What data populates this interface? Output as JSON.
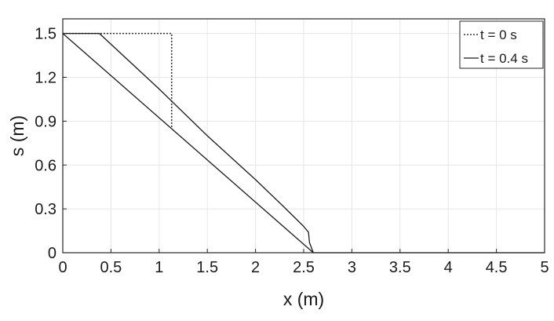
{
  "chart_data": {
    "type": "line",
    "xlabel": "x (m)",
    "ylabel": "s (m)",
    "xlim": [
      0,
      5
    ],
    "ylim": [
      0,
      1.6
    ],
    "x_ticks": [
      "0",
      "0.5",
      "1",
      "1.5",
      "2",
      "2.5",
      "3",
      "3.5",
      "4",
      "4.5",
      "5"
    ],
    "y_ticks": [
      "0",
      "0.3",
      "0.6",
      "0.9",
      "1.2",
      "1.5"
    ],
    "grid": true,
    "legend_position": "top-right",
    "series": [
      {
        "name": "t = 0 s",
        "style": "dotted",
        "color": "#333333",
        "x": [
          0,
          1.13,
          1.13
        ],
        "y": [
          1.5,
          1.5,
          0.85
        ]
      },
      {
        "name": "t = 0.4 s",
        "style": "solid",
        "color": "#1a1a1a",
        "x": [
          0,
          0.38,
          1.0,
          1.5,
          2.0,
          2.3,
          2.5,
          2.55,
          2.56,
          2.6,
          5.0
        ],
        "y": [
          1.5,
          1.5,
          1.12,
          0.8,
          0.5,
          0.31,
          0.18,
          0.14,
          0.07,
          0,
          0
        ]
      },
      {
        "name": "",
        "style": "solid",
        "color": "#1a1a1a",
        "x": [
          0,
          2.6
        ],
        "y": [
          1.5,
          0
        ]
      }
    ]
  }
}
